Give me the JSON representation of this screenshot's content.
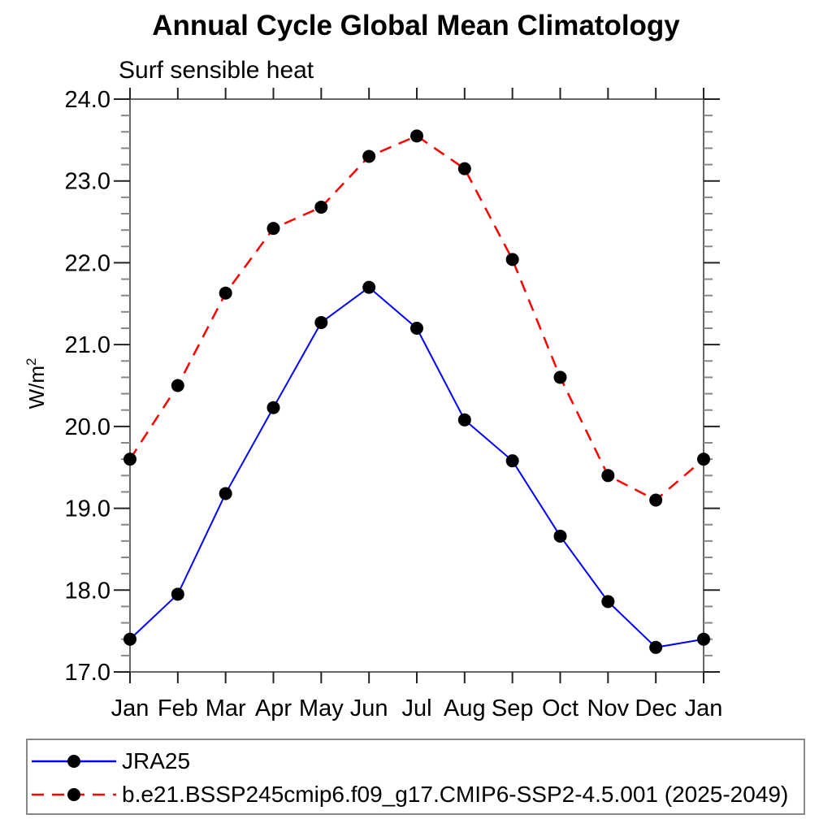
{
  "title": "Annual Cycle Global Mean Climatology",
  "subtitle": "Surf sensible heat",
  "y_axis": {
    "label_base": "W/m",
    "label_exponent": "2",
    "tick_labels": [
      "17.0",
      "18.0",
      "19.0",
      "20.0",
      "21.0",
      "22.0",
      "23.0",
      "24.0"
    ]
  },
  "chart_data": {
    "type": "line",
    "title": "Annual Cycle Global Mean Climatology",
    "subtitle": "Surf sensible heat",
    "ylabel": "W/m²",
    "categories": [
      "Jan",
      "Feb",
      "Mar",
      "Apr",
      "May",
      "Jun",
      "Jul",
      "Aug",
      "Sep",
      "Oct",
      "Nov",
      "Dec",
      "Jan"
    ],
    "series": [
      {
        "name": "JRA25",
        "color": "#0000ff",
        "line_style": "solid",
        "dash": "none",
        "line_width": 2,
        "marker": "filled-circle",
        "marker_color": "#000000",
        "values": [
          17.4,
          17.95,
          19.18,
          20.23,
          21.27,
          21.7,
          21.2,
          20.08,
          19.58,
          18.66,
          17.86,
          17.3,
          17.4
        ]
      },
      {
        "name": "b.e21.BSSP245cmip6.f09_g17.CMIP6-SSP2-4.5.001 (2025-2049)",
        "color": "#ff0000",
        "line_style": "dashed",
        "dash": "15 10",
        "line_width": 2.5,
        "marker": "filled-circle",
        "marker_color": "#000000",
        "values": [
          19.6,
          20.5,
          21.63,
          22.42,
          22.68,
          23.3,
          23.55,
          23.15,
          22.04,
          20.6,
          19.4,
          19.1,
          19.6
        ]
      }
    ],
    "ylim": [
      17.0,
      24.0
    ],
    "yticks": [
      17,
      18,
      19,
      20,
      21,
      22,
      23,
      24
    ],
    "minor_tick_step": 0.2,
    "grid": false,
    "legend_position": "bottom"
  }
}
